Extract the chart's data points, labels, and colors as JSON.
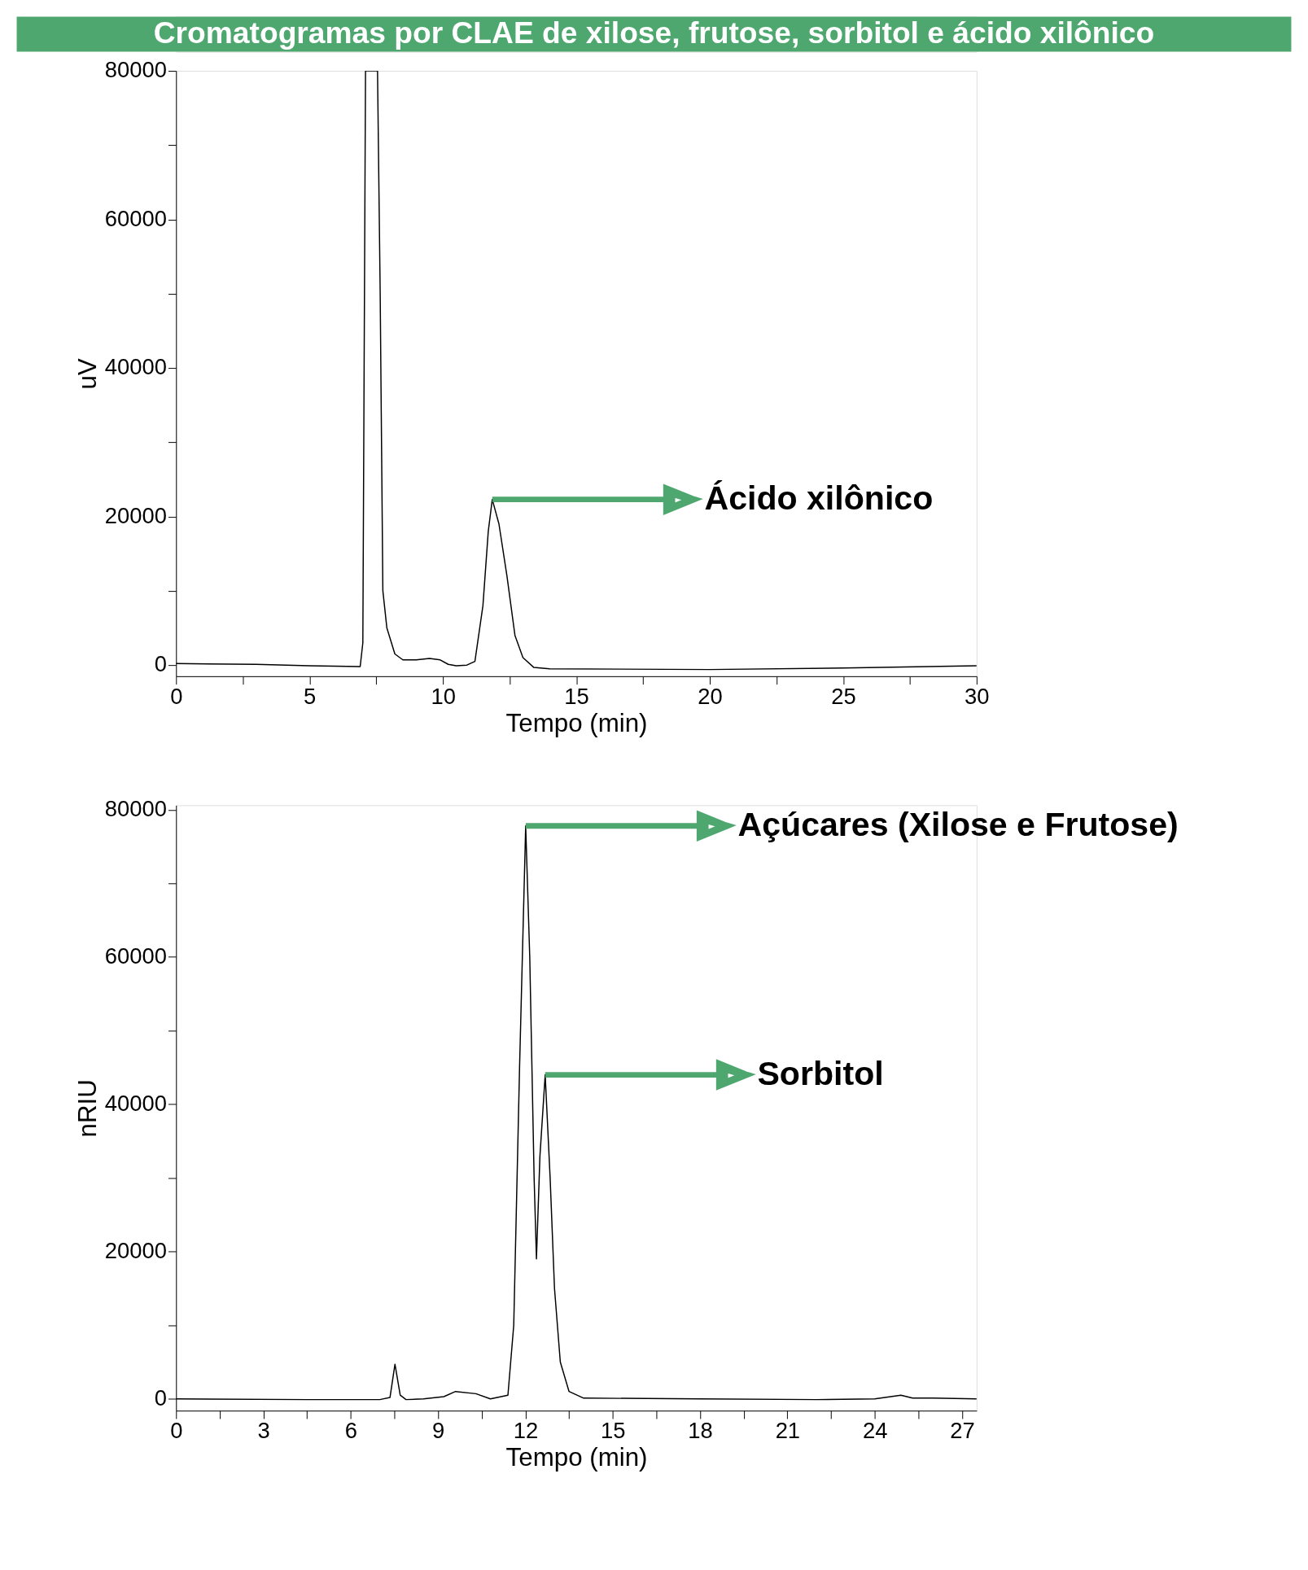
{
  "chart_data": [
    {
      "type": "line",
      "title": "Cromatogramas por CLAE de xilose, frutose, sorbitol e ácido xilônico",
      "xlabel": "Tempo (min)",
      "ylabel": "uV",
      "xlim": [
        0,
        30
      ],
      "ylim": [
        -1500,
        80000
      ],
      "xticks": [
        0,
        {
          "value": 2.5,
          "label": null
        },
        5,
        {
          "value": 7.5,
          "label": null
        },
        10,
        {
          "value": 12.5,
          "label": null
        },
        15,
        {
          "value": 17.5,
          "label": null
        },
        20,
        {
          "value": 22.5,
          "label": null
        },
        25,
        {
          "value": 27.5,
          "label": null
        },
        30
      ],
      "yticks": [
        0,
        {
          "value": 10000,
          "label": null
        },
        20000,
        {
          "value": 30000,
          "label": null
        },
        40000,
        {
          "value": 50000,
          "label": null
        },
        60000,
        {
          "value": 70000,
          "label": null
        },
        80000
      ],
      "grid": false,
      "marker": "none",
      "line_style": "solid",
      "series": [
        {
          "color": "#000000",
          "x": [
            0,
            3,
            5,
            6.9,
            7.0,
            7.1,
            7.55,
            7.65,
            7.75,
            7.9,
            8.2,
            8.5,
            9.0,
            9.5,
            9.9,
            10.2,
            10.5,
            10.9,
            11.2,
            11.5,
            11.7,
            11.85,
            12.1,
            12.4,
            12.7,
            13.0,
            13.4,
            14,
            20,
            25,
            30
          ],
          "values": [
            200,
            100,
            -100,
            -200,
            3000,
            80000,
            80000,
            50000,
            10000,
            5000,
            1500,
            700,
            700,
            900,
            700,
            100,
            -100,
            0,
            500,
            8000,
            18000,
            22300,
            19000,
            12000,
            4000,
            1000,
            -300,
            -500,
            -600,
            -400,
            -100
          ]
        }
      ],
      "annotations": [
        {
          "text": "Ácido xilônico",
          "x": 11.85,
          "y": 22300
        }
      ]
    },
    {
      "type": "line",
      "xlabel": "Tempo (min)",
      "ylabel": "nRIU",
      "xlim": [
        0,
        27.5
      ],
      "ylim": [
        -1600,
        80600
      ],
      "xticks": [
        0,
        {
          "value": 1.5,
          "label": null
        },
        3,
        {
          "value": 4.5,
          "label": null
        },
        6,
        {
          "value": 7.5,
          "label": null
        },
        9,
        {
          "value": 10.5,
          "label": null
        },
        12,
        {
          "value": 13.5,
          "label": null
        },
        15,
        {
          "value": 16.5,
          "label": null
        },
        18,
        {
          "value": 19.5,
          "label": null
        },
        21,
        {
          "value": 22.5,
          "label": null
        },
        24,
        {
          "value": 25.5,
          "label": null
        },
        27
      ],
      "yticks": [
        0,
        {
          "value": 10000,
          "label": null
        },
        20000,
        {
          "value": 30000,
          "label": null
        },
        40000,
        {
          "value": 50000,
          "label": null
        },
        60000,
        {
          "value": 70000,
          "label": null
        },
        80000
      ],
      "grid": false,
      "marker": "none",
      "line_style": "solid",
      "series": [
        {
          "color": "#000000",
          "x": [
            0,
            4.5,
            7.0,
            7.35,
            7.52,
            7.7,
            7.9,
            8.5,
            9.2,
            9.6,
            10.3,
            10.8,
            11.4,
            11.6,
            11.8,
            12.01,
            12.15,
            12.3,
            12.38,
            12.5,
            12.68,
            12.85,
            13.0,
            13.2,
            13.5,
            14,
            18,
            22,
            24,
            24.9,
            25.3,
            26,
            27.5
          ],
          "values": [
            0,
            -100,
            -100,
            200,
            4700,
            500,
            -100,
            0,
            300,
            1000,
            700,
            0,
            500,
            10000,
            45000,
            77800,
            60000,
            30000,
            19000,
            33000,
            44000,
            30000,
            15000,
            5000,
            1000,
            100,
            0,
            -100,
            0,
            500,
            100,
            100,
            0
          ]
        }
      ],
      "annotations": [
        {
          "text": "Açúcares (Xilose e Frutose)",
          "x": 12.01,
          "y": 77800
        },
        {
          "text": "Sorbitol",
          "x": 12.68,
          "y": 44000
        }
      ]
    }
  ]
}
